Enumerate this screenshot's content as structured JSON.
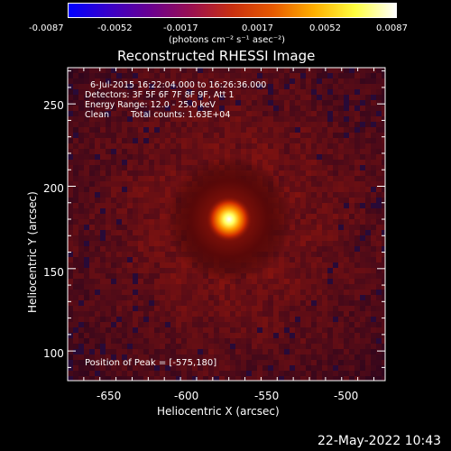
{
  "colorbar": {
    "tick_labels": [
      "-0.0087",
      "-0.0052",
      "-0.0017",
      "0.0017",
      "0.0052",
      "0.0087"
    ],
    "unit_label": "(photons cm⁻² s⁻¹ asec⁻²)",
    "colors": [
      "#0000ff",
      "#3a00c8",
      "#6a0090",
      "#9a1050",
      "#c83010",
      "#e85a00",
      "#ffb000",
      "#ffff40",
      "#ffffff"
    ]
  },
  "title": "Reconstructed RHESSI Image",
  "info": {
    "time_range": "6-Jul-2015 16:22:04.000 to 16:26:36.000",
    "detectors": "Detectors: 3F 5F 6F 7F 8F 9F, Att 1",
    "energy_range": "Energy Range: 12.0 - 25.0 keV",
    "method": "Clean",
    "total_counts": "Total counts: 1.63E+04"
  },
  "peak_label": "Position of Peak = [-575,180]",
  "axes": {
    "xlabel": "Heliocentric X (arcsec)",
    "ylabel": "Heliocentric Y (arcsec)",
    "x_ticks": [
      "-650",
      "-600",
      "-550",
      "-500"
    ],
    "x_tick_values": [
      -650,
      -600,
      -550,
      -500
    ],
    "y_ticks": [
      "100",
      "150",
      "200",
      "250"
    ],
    "y_tick_values": [
      100,
      150,
      200,
      250
    ],
    "xlim": [
      -675,
      -478
    ],
    "ylim": [
      82,
      272
    ]
  },
  "peak": {
    "x": -575,
    "y": 180
  },
  "timestamp": "22-May-2022 10:43"
}
